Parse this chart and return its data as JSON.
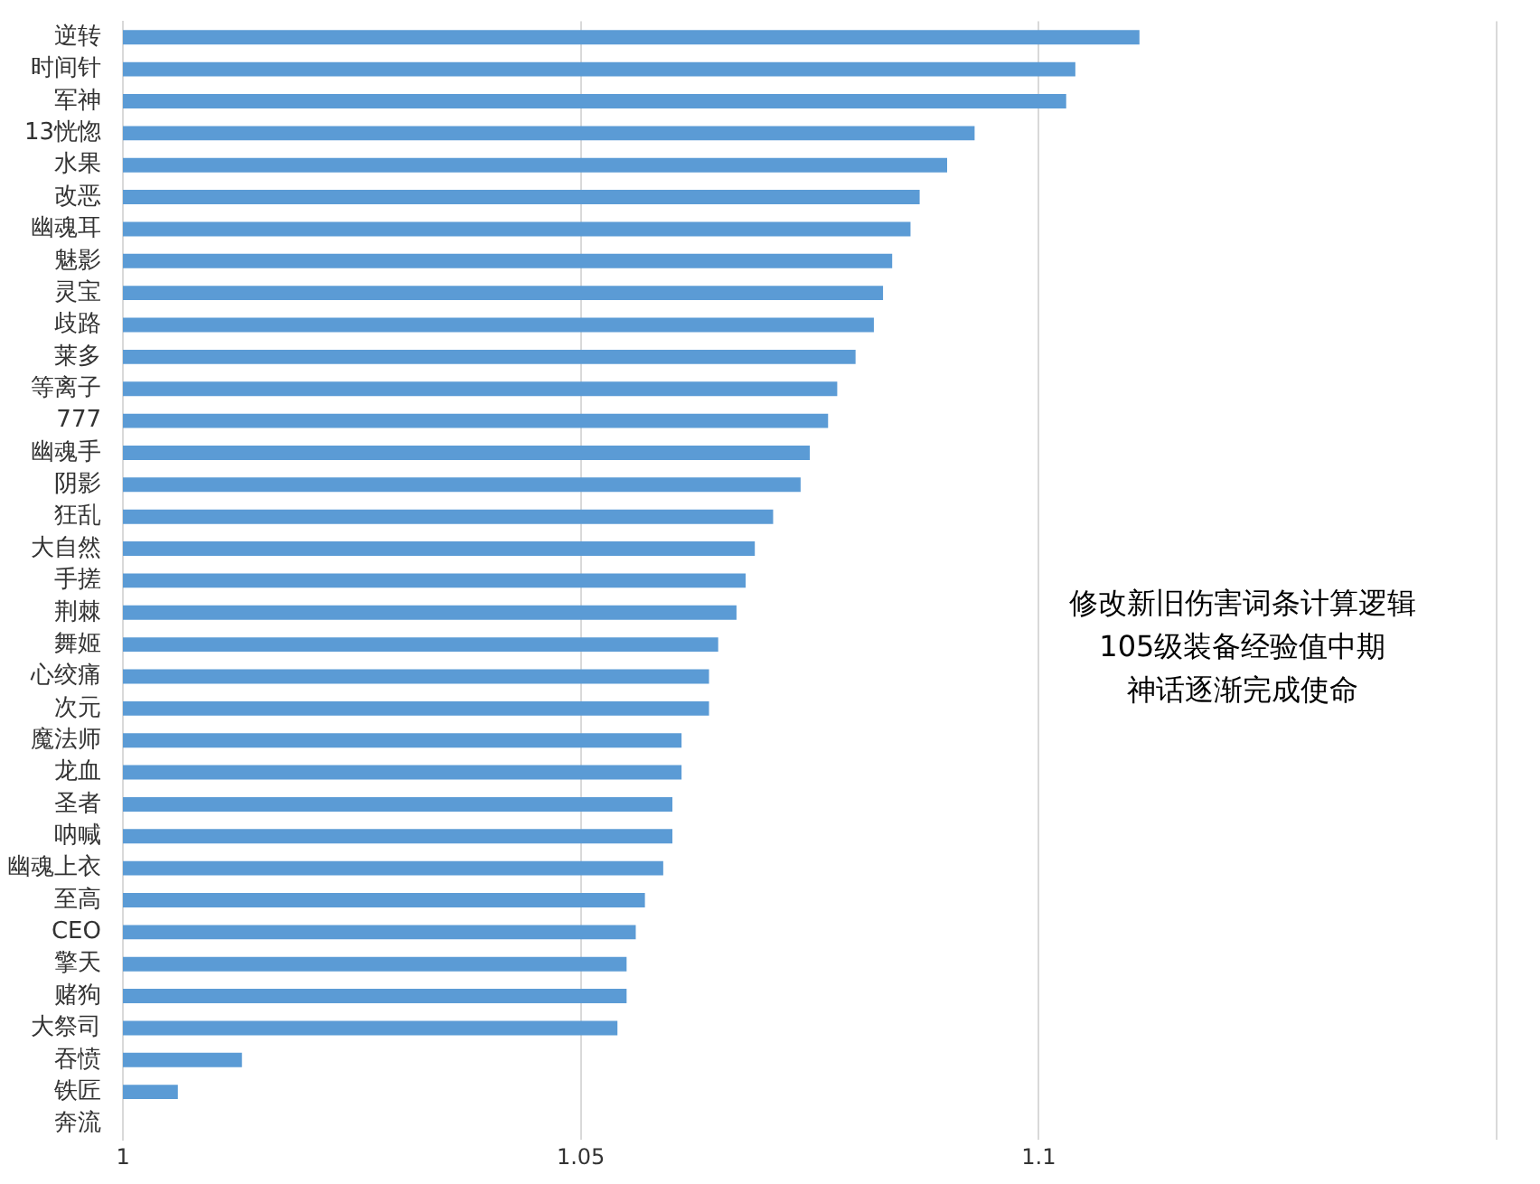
{
  "chart_data": {
    "type": "bar",
    "orientation": "horizontal",
    "categories": [
      "逆转",
      "时间针",
      "军神",
      "13恍惚",
      "水果",
      "改恶",
      "幽魂耳",
      "魅影",
      "灵宝",
      "歧路",
      "莱多",
      "等离子",
      "777",
      "幽魂手",
      "阴影",
      "狂乱",
      "大自然",
      "手搓",
      "荆棘",
      "舞姬",
      "心绞痛",
      "次元",
      "魔法师",
      "龙血",
      "圣者",
      "呐喊",
      "幽魂上衣",
      "至高",
      "CEO",
      "擎天",
      "赌狗",
      "大祭司",
      "吞愤",
      "铁匠",
      "奔流"
    ],
    "values": [
      1.111,
      1.104,
      1.103,
      1.093,
      1.09,
      1.087,
      1.086,
      1.084,
      1.083,
      1.082,
      1.08,
      1.078,
      1.077,
      1.075,
      1.074,
      1.071,
      1.069,
      1.068,
      1.067,
      1.065,
      1.064,
      1.064,
      1.061,
      1.061,
      1.06,
      1.06,
      1.059,
      1.057,
      1.056,
      1.055,
      1.055,
      1.054,
      1.013,
      1.006,
      1
    ],
    "color": "#5b9bd5",
    "xlim": [
      1,
      1.15
    ],
    "xticks": [
      1,
      1.05,
      1.1,
      {
        "value": 1.15,
        "label": null
      }
    ],
    "grid": "x",
    "annotations": [
      "修改新旧伤害词条计算逻辑",
      "105级装备经验值中期",
      "神话逐渐完成使命"
    ]
  }
}
